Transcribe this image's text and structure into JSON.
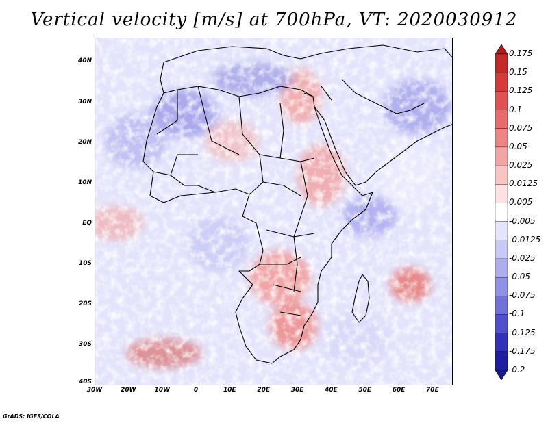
{
  "title": "Vertical velocity [m/s] at 700hPa, VT: 2020030912",
  "footer": "GrADS: IGES/COLA",
  "map": {
    "lon_range": [
      -30,
      76
    ],
    "lat_range": [
      -40,
      46
    ],
    "lat_labels": [
      "40N",
      "30N",
      "20N",
      "10N",
      "EQ",
      "10S",
      "20S",
      "30S",
      "40S"
    ],
    "lat_values": [
      40,
      30,
      20,
      10,
      0,
      -10,
      -20,
      -30,
      -40
    ],
    "lon_labels": [
      "30W",
      "20W",
      "10W",
      "0",
      "10E",
      "20E",
      "30E",
      "40E",
      "50E",
      "60E",
      "70E"
    ],
    "lon_values": [
      -30,
      -20,
      -10,
      0,
      10,
      20,
      30,
      40,
      50,
      60,
      70
    ]
  },
  "colorbar": {
    "labels": [
      "0.175",
      "0.15",
      "0.125",
      "0.1",
      "0.075",
      "0.05",
      "0.025",
      "0.0125",
      "0.005",
      "-0.005",
      "-0.0125",
      "-0.025",
      "-0.05",
      "-0.075",
      "-0.1",
      "-0.125",
      "-0.175",
      "-0.2"
    ],
    "colors": [
      "#b01a1a",
      "#c42a2a",
      "#d43c3c",
      "#e05252",
      "#e86a6a",
      "#ee8686",
      "#f3a4a4",
      "#f8c4c4",
      "#fce2e2",
      "#ffffff",
      "#e4e4fb",
      "#c9c9f5",
      "#aeaeef",
      "#9090e6",
      "#7070da",
      "#5050cc",
      "#3232b8",
      "#1e1ea0",
      "#1a1a8a"
    ]
  }
}
